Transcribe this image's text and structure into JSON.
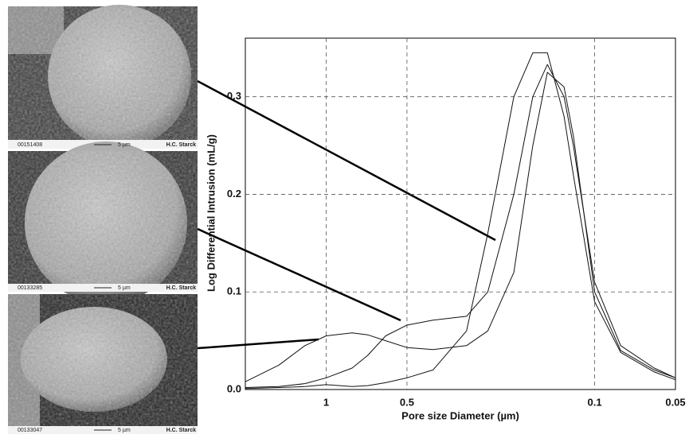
{
  "chart_data": {
    "type": "line",
    "x_label": "Pore size Diameter (µm)",
    "y_label": "Log Differential Intrusion (mL/g)",
    "x": [
      2,
      1.5,
      1.2,
      1,
      0.8,
      0.7,
      0.6,
      0.5,
      0.4,
      0.3,
      0.25,
      0.2,
      0.17,
      0.15,
      0.13,
      0.12,
      0.1,
      0.08,
      0.06,
      0.05
    ],
    "series": [
      {
        "color": "#111111",
        "values": [
          0.008,
          0.025,
          0.045,
          0.055,
          0.058,
          0.056,
          0.05,
          0.043,
          0.041,
          0.045,
          0.06,
          0.12,
          0.25,
          0.325,
          0.31,
          0.26,
          0.1,
          0.04,
          0.02,
          0.012
        ]
      },
      {
        "color": "#111111",
        "values": [
          0.002,
          0.003,
          0.006,
          0.012,
          0.022,
          0.035,
          0.055,
          0.066,
          0.071,
          0.075,
          0.1,
          0.2,
          0.3,
          0.333,
          0.3,
          0.25,
          0.11,
          0.045,
          0.022,
          0.012
        ]
      },
      {
        "color": "#111111",
        "values": [
          0.001,
          0.002,
          0.003,
          0.005,
          0.003,
          0.004,
          0.007,
          0.012,
          0.02,
          0.06,
          0.16,
          0.3,
          0.345,
          0.345,
          0.28,
          0.22,
          0.09,
          0.038,
          0.018,
          0.01
        ]
      }
    ],
    "xscale": "log",
    "xlim": [
      2,
      0.05
    ],
    "xticks": [
      1,
      0.5,
      0.1,
      0.05
    ],
    "ylim": [
      0,
      0.36
    ],
    "yticks": [
      {
        "value": 0,
        "label": "0.0"
      },
      0.1,
      0.2,
      0.3
    ],
    "grid": true
  },
  "images": [
    {
      "id": "00151408",
      "scale": "5 µm",
      "brand": "H.C. Starck"
    },
    {
      "id": "00133285",
      "scale": "5 µm",
      "brand": "H.C. Starck"
    },
    {
      "id": "00133047",
      "scale": "5 µm",
      "brand": "H.C. Starck"
    }
  ]
}
